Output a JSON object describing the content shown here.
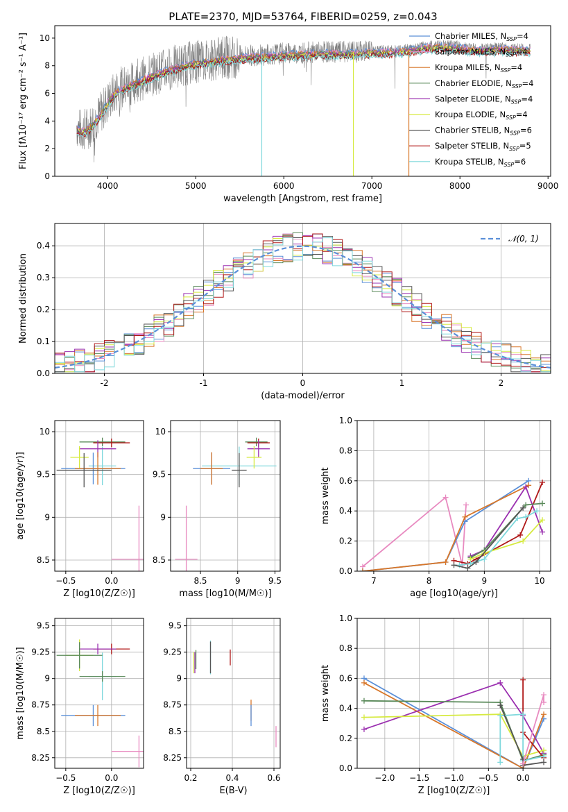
{
  "figure_title": "PLATE=2370, MJD=53764, FIBERID=0259, z=0.043",
  "colors": {
    "chabrier_miles": "#5a8fd8",
    "salpeter_miles": "#e88ac0",
    "kroupa_miles": "#d8772a",
    "chabrier_elodie": "#5a8a5a",
    "salpeter_elodie": "#9b30b0",
    "kroupa_elodie": "#d6ea40",
    "chabrier_stelib": "#555555",
    "salpeter_stelib": "#b01818",
    "kroupa_stelib": "#7fd8dc",
    "data": "#808080",
    "normal": "#5a8fd8"
  },
  "chart_data": [
    {
      "type": "line",
      "title": "PLATE=2370, MJD=53764, FIBERID=0259, z=0.043",
      "xlabel": "wavelength [Angstrom, rest frame]",
      "ylabel": "Flux [fλ10⁻¹⁷ erg cm⁻² s⁻¹ A⁻¹]",
      "xlim": [
        3400,
        9030
      ],
      "ylim": [
        0,
        10.9
      ],
      "xticks": [
        4000,
        5000,
        6000,
        7000,
        8000,
        9000
      ],
      "yticks": [
        0,
        2,
        4,
        6,
        8,
        10
      ],
      "legend_position": "top-right",
      "series": [
        {
          "name": "Chabrier MILES, N_SSP=4",
          "sub": "SSP",
          "label": "Chabrier MILES, N",
          "eq": "=4",
          "color_key": "chabrier_miles"
        },
        {
          "name": "Salpeter MILES, N_SSP=4",
          "label": "Salpeter MILES, N",
          "sub": "SSP",
          "eq": "=4",
          "color_key": "salpeter_miles"
        },
        {
          "name": "Kroupa MILES, N_SSP=4",
          "label": "Kroupa MILES, N",
          "sub": "SSP",
          "eq": "=4",
          "color_key": "kroupa_miles"
        },
        {
          "name": "Chabrier ELODIE, N_SSP=4",
          "label": "Chabrier ELODIE, N",
          "sub": "SSP",
          "eq": "=4",
          "color_key": "chabrier_elodie"
        },
        {
          "name": "Salpeter ELODIE, N_SSP=4",
          "label": "Salpeter ELODIE, N",
          "sub": "SSP",
          "eq": "=4",
          "color_key": "salpeter_elodie"
        },
        {
          "name": "Kroupa ELODIE, N_SSP=4",
          "label": "Kroupa ELODIE, N",
          "sub": "SSP",
          "eq": "=4",
          "color_key": "kroupa_elodie"
        },
        {
          "name": "Chabrier STELIB, N_SSP=6",
          "label": "Chabrier STELIB, N",
          "sub": "SSP",
          "eq": "=6",
          "color_key": "chabrier_stelib"
        },
        {
          "name": "Salpeter STELIB, N_SSP=5",
          "label": "Salpeter STELIB, N",
          "sub": "SSP",
          "eq": "=5",
          "color_key": "salpeter_stelib"
        },
        {
          "name": "Kroupa STELIB, N_SSP=6",
          "label": "Kroupa STELIB, N",
          "sub": "SSP",
          "eq": "=6",
          "color_key": "kroupa_stelib"
        }
      ],
      "continuum": {
        "x": [
          3650,
          3700,
          3800,
          3900,
          4000,
          4100,
          4200,
          4400,
          4600,
          4800,
          5000,
          5200,
          5500,
          5800,
          6000,
          6200,
          6500,
          6800,
          7000,
          7200,
          7400,
          7600,
          7800,
          8000,
          8200,
          8500,
          8800
        ],
        "y": [
          3.6,
          3.3,
          3.6,
          4.4,
          5.4,
          6.2,
          6.5,
          7.1,
          7.6,
          8.0,
          8.3,
          8.5,
          8.7,
          8.8,
          8.9,
          8.95,
          9.0,
          9.0,
          9.1,
          9.1,
          9.2,
          9.4,
          9.5,
          9.4,
          9.2,
          9.3,
          9.2
        ]
      },
      "x_range_data": [
        3650,
        8800
      ]
    },
    {
      "type": "bar",
      "xlabel": "(data-model)/error",
      "ylabel": "Normed distribution",
      "xlim": [
        -2.5,
        2.5
      ],
      "ylim": [
        0,
        0.47
      ],
      "xticks": [
        -2,
        -1,
        0,
        1,
        2
      ],
      "yticks": [
        0.0,
        0.1,
        0.2,
        0.3,
        0.4
      ],
      "legend_label": "𝒩(0, 1)",
      "legend_position": "top-right",
      "bin_width": 0.1,
      "bin_range": [
        -2.5,
        2.5
      ]
    },
    {
      "type": "scatter",
      "xlabel": "Z [log10(Z/Z☉)]",
      "ylabel": "age  [log10(age/yr)]",
      "xlim": [
        -0.62,
        0.35
      ],
      "ylim": [
        8.37,
        10.13
      ],
      "xticks": [
        -0.5,
        0.0
      ],
      "xtick_labels": [
        "−0.5",
        "0.0"
      ],
      "yticks": [
        8.5,
        9.0,
        9.5,
        10.0
      ],
      "points": [
        {
          "x": -0.1,
          "y": 9.6,
          "xerr": 0.15,
          "yerr": 0.45,
          "color_key": "kroupa_stelib"
        },
        {
          "x": -0.2,
          "y": 9.57,
          "xerr": 0.35,
          "yerr": 0.37,
          "color_key": "chabrier_miles"
        },
        {
          "x": -0.1,
          "y": 9.88,
          "xerr": 0.25,
          "yerr": 0.1,
          "color_key": "chabrier_elodie"
        },
        {
          "x": 0.0,
          "y": 9.87,
          "xerr": 0.2,
          "yerr": 0.1,
          "color_key": "salpeter_stelib"
        },
        {
          "x": -0.15,
          "y": 9.8,
          "xerr": 0.2,
          "yerr": 0.2,
          "color_key": "salpeter_elodie"
        },
        {
          "x": -0.35,
          "y": 9.7,
          "xerr": 0.1,
          "yerr": 0.26,
          "color_key": "kroupa_elodie"
        },
        {
          "x": -0.15,
          "y": 9.57,
          "xerr": 0.25,
          "yerr": 0.38,
          "color_key": "kroupa_miles"
        },
        {
          "x": -0.3,
          "y": 9.55,
          "xerr": 0.3,
          "yerr": 0.4,
          "color_key": "chabrier_stelib"
        },
        {
          "x": 0.3,
          "y": 8.51,
          "xerr": 0.3,
          "yerr": 1.25,
          "color_key": "salpeter_miles"
        }
      ]
    },
    {
      "type": "scatter",
      "xlabel": "mass [log10(M/M☉)]",
      "xlim": [
        8.1,
        9.57
      ],
      "ylim": [
        8.37,
        10.13
      ],
      "xticks": [
        8.5,
        9.0,
        9.5
      ],
      "yticks": [
        8.5,
        9.0,
        9.5,
        10.0
      ],
      "points": [
        {
          "x": 9.02,
          "y": 9.6,
          "xerr": 0.5,
          "yerr": 0.45,
          "color_key": "kroupa_stelib"
        },
        {
          "x": 8.65,
          "y": 9.57,
          "xerr": 0.25,
          "yerr": 0.37,
          "color_key": "chabrier_miles"
        },
        {
          "x": 9.25,
          "y": 9.88,
          "xerr": 0.15,
          "yerr": 0.1,
          "color_key": "chabrier_elodie"
        },
        {
          "x": 9.28,
          "y": 9.87,
          "xerr": 0.15,
          "yerr": 0.1,
          "color_key": "salpeter_stelib"
        },
        {
          "x": 9.28,
          "y": 9.8,
          "xerr": 0.15,
          "yerr": 0.2,
          "color_key": "salpeter_elodie"
        },
        {
          "x": 9.22,
          "y": 9.7,
          "xerr": 0.1,
          "yerr": 0.26,
          "color_key": "kroupa_elodie"
        },
        {
          "x": 8.65,
          "y": 9.57,
          "xerr": 0.15,
          "yerr": 0.38,
          "color_key": "kroupa_miles"
        },
        {
          "x": 9.02,
          "y": 9.55,
          "xerr": 0.1,
          "yerr": 0.4,
          "color_key": "chabrier_stelib"
        },
        {
          "x": 8.31,
          "y": 8.51,
          "xerr": 0.15,
          "yerr": 1.25,
          "color_key": "salpeter_miles"
        }
      ]
    },
    {
      "type": "line",
      "xlabel": "age  [log10(age/yr)]",
      "ylabel": "mass weight",
      "xlim": [
        6.7,
        10.2
      ],
      "ylim": [
        0,
        1.0
      ],
      "xticks": [
        7,
        8,
        9,
        10
      ],
      "yticks": [
        0.0,
        0.2,
        0.4,
        0.6,
        0.8,
        1.0
      ],
      "series": [
        {
          "color_key": "salpeter_miles",
          "x": [
            6.8,
            8.3,
            8.6,
            8.67
          ],
          "y": [
            0.03,
            0.49,
            0.04,
            0.44
          ]
        },
        {
          "color_key": "chabrier_miles",
          "x": [
            6.8,
            8.3,
            8.65,
            9.8
          ],
          "y": [
            0.0,
            0.06,
            0.33,
            0.6
          ]
        },
        {
          "color_key": "kroupa_miles",
          "x": [
            6.8,
            8.3,
            8.65,
            9.8
          ],
          "y": [
            0.0,
            0.06,
            0.36,
            0.57
          ]
        },
        {
          "color_key": "salpeter_stelib",
          "x": [
            8.45,
            8.7,
            8.85,
            9.65,
            10.05
          ],
          "y": [
            0.07,
            0.05,
            0.08,
            0.24,
            0.59
          ]
        },
        {
          "color_key": "salpeter_elodie",
          "x": [
            8.75,
            9.0,
            9.75,
            10.05
          ],
          "y": [
            0.1,
            0.14,
            0.56,
            0.26
          ]
        },
        {
          "color_key": "chabrier_elodie",
          "x": [
            8.75,
            9.0,
            9.75,
            10.05
          ],
          "y": [
            0.09,
            0.14,
            0.44,
            0.45
          ]
        },
        {
          "color_key": "kroupa_elodie",
          "x": [
            8.75,
            9.0,
            9.7,
            10.05
          ],
          "y": [
            0.08,
            0.12,
            0.2,
            0.34
          ]
        },
        {
          "color_key": "kroupa_stelib",
          "x": [
            8.55,
            8.75,
            9.0,
            9.6,
            9.75,
            9.95
          ],
          "y": [
            0.04,
            0.05,
            0.08,
            0.35,
            0.36,
            0.4
          ]
        },
        {
          "color_key": "chabrier_stelib",
          "x": [
            8.45,
            8.7,
            8.85,
            9.7
          ],
          "y": [
            0.04,
            0.02,
            0.06,
            0.42
          ]
        }
      ]
    },
    {
      "type": "scatter",
      "xlabel": "Z [log10(Z/Z☉)]",
      "ylabel": "mass [log10(M/M☉)]",
      "xlim": [
        -0.62,
        0.35
      ],
      "ylim": [
        8.15,
        9.57
      ],
      "xticks": [
        -0.5,
        0.0
      ],
      "xtick_labels": [
        "−0.5",
        "0.0"
      ],
      "yticks": [
        8.25,
        8.5,
        8.75,
        9.0,
        9.25,
        9.5
      ],
      "points": [
        {
          "x": -0.1,
          "y": 9.02,
          "xerr": 0.15,
          "yerr": 0.45,
          "color_key": "kroupa_stelib"
        },
        {
          "x": -0.2,
          "y": 8.65,
          "xerr": 0.35,
          "yerr": 0.2,
          "color_key": "chabrier_miles"
        },
        {
          "x": -0.1,
          "y": 9.02,
          "xerr": 0.25,
          "yerr": 0.1,
          "color_key": "chabrier_elodie"
        },
        {
          "x": 0.0,
          "y": 9.28,
          "xerr": 0.2,
          "yerr": 0.1,
          "color_key": "salpeter_stelib"
        },
        {
          "x": -0.15,
          "y": 9.28,
          "xerr": 0.2,
          "yerr": 0.1,
          "color_key": "salpeter_elodie"
        },
        {
          "x": -0.35,
          "y": 9.22,
          "xerr": 0.15,
          "yerr": 0.3,
          "color_key": "kroupa_elodie"
        },
        {
          "x": -0.15,
          "y": 8.65,
          "xerr": 0.25,
          "yerr": 0.2,
          "color_key": "kroupa_miles"
        },
        {
          "x": -0.35,
          "y": 9.22,
          "xerr": 0.25,
          "yerr": 0.25,
          "color_key": "chabrier_elodie"
        },
        {
          "x": 0.3,
          "y": 8.31,
          "xerr": 0.3,
          "yerr": 0.3,
          "color_key": "salpeter_miles"
        }
      ]
    },
    {
      "type": "scatter",
      "xlabel": "E(B-V)",
      "xlim": [
        0.18,
        0.63
      ],
      "ylim": [
        8.15,
        9.57
      ],
      "xticks": [
        0.2,
        0.4,
        0.6
      ],
      "yticks": [
        8.25,
        8.5,
        8.75,
        9.0,
        9.25,
        9.5
      ],
      "points": [
        {
          "x": 0.215,
          "y": 9.15,
          "yerr": 0.2,
          "color_key": "kroupa_elodie"
        },
        {
          "x": 0.22,
          "y": 9.15,
          "yerr": 0.2,
          "color_key": "salpeter_elodie"
        },
        {
          "x": 0.225,
          "y": 9.18,
          "yerr": 0.18,
          "color_key": "chabrier_elodie"
        },
        {
          "x": 0.295,
          "y": 9.2,
          "yerr": 0.32,
          "color_key": "kroupa_stelib"
        },
        {
          "x": 0.295,
          "y": 9.2,
          "yerr": 0.3,
          "color_key": "chabrier_stelib"
        },
        {
          "x": 0.39,
          "y": 9.2,
          "yerr": 0.15,
          "color_key": "salpeter_stelib"
        },
        {
          "x": 0.49,
          "y": 8.7,
          "yerr": 0.2,
          "color_key": "kroupa_miles"
        },
        {
          "x": 0.49,
          "y": 8.65,
          "yerr": 0.2,
          "color_key": "chabrier_miles"
        },
        {
          "x": 0.61,
          "y": 8.45,
          "yerr": 0.2,
          "color_key": "salpeter_miles"
        }
      ]
    },
    {
      "type": "line",
      "xlabel": "Z [log10(Z/Z☉)]",
      "ylabel": "mass weight",
      "xlim": [
        -2.4,
        0.4
      ],
      "ylim": [
        0,
        1.0
      ],
      "xticks": [
        -2.0,
        -1.5,
        -1.0,
        -0.5,
        0.0
      ],
      "xtick_labels": [
        "−2.0",
        "−1.5",
        "−1.0",
        "−0.5",
        "0.0"
      ],
      "yticks": [
        0.0,
        0.2,
        0.4,
        0.6,
        0.8,
        1.0
      ],
      "series": [
        {
          "color_key": "chabrier_miles",
          "x": [
            -2.3,
            0.0,
            0.3
          ],
          "y": [
            0.6,
            0.0,
            0.33
          ]
        },
        {
          "color_key": "kroupa_miles",
          "x": [
            -2.3,
            0.0,
            0.3
          ],
          "y": [
            0.57,
            0.0,
            0.36
          ]
        },
        {
          "color_key": "salpeter_elodie",
          "x": [
            -2.3,
            -0.33,
            0.0,
            0.3
          ],
          "y": [
            0.26,
            0.57,
            0.35,
            0.1
          ]
        },
        {
          "color_key": "chabrier_elodie",
          "x": [
            -2.3,
            -0.33,
            0.0,
            0.3
          ],
          "y": [
            0.45,
            0.44,
            0.05,
            0.09
          ]
        },
        {
          "color_key": "kroupa_elodie",
          "x": [
            -2.3,
            -0.33,
            0.0,
            0.3
          ],
          "y": [
            0.34,
            0.36,
            0.08,
            0.12
          ]
        },
        {
          "color_key": "salpeter_stelib",
          "x": [
            0.0,
            0.0,
            0.3
          ],
          "y": [
            0.59,
            0.24,
            0.07
          ]
        },
        {
          "color_key": "kroupa_stelib",
          "x": [
            -0.33,
            -0.33,
            0.0,
            0.0,
            0.3
          ],
          "y": [
            0.04,
            0.35,
            0.36,
            0.05,
            0.08
          ]
        },
        {
          "color_key": "chabrier_stelib",
          "x": [
            -0.33,
            0.0,
            0.0,
            0.3
          ],
          "y": [
            0.42,
            0.06,
            0.02,
            0.04
          ]
        },
        {
          "color_key": "salpeter_miles",
          "x": [
            0.0,
            0.3,
            0.3
          ],
          "y": [
            0.03,
            0.49,
            0.44
          ]
        }
      ]
    }
  ]
}
